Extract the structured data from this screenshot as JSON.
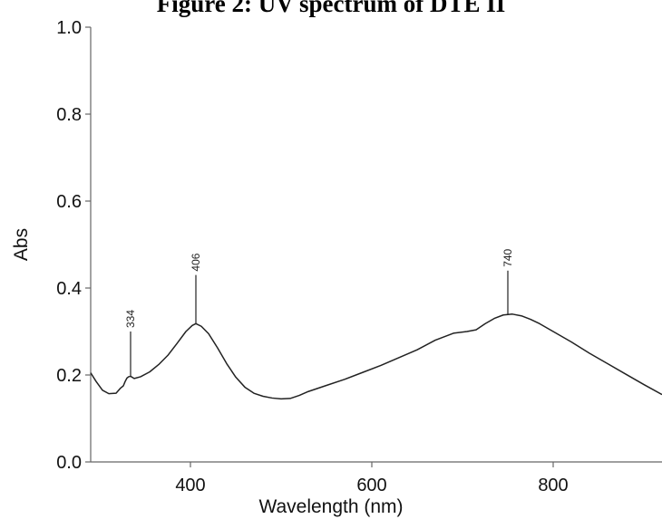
{
  "chart_data": {
    "type": "line",
    "title": "Figure 2: UV spectrum of DTE II",
    "xlabel": "Wavelength (nm)",
    "ylabel": "Abs",
    "xlim": [
      290,
      920
    ],
    "ylim": [
      0.0,
      1.0
    ],
    "x_ticks": [
      400,
      600,
      800
    ],
    "x_tick_labels": [
      "400",
      "600",
      "800"
    ],
    "y_ticks": [
      0.0,
      0.2,
      0.4,
      0.6,
      0.8,
      1.0
    ],
    "y_tick_labels": [
      "0.0",
      "0.2",
      "0.4",
      "0.6",
      "0.8",
      "1.0"
    ],
    "grid": false,
    "legend": "none",
    "series": [
      {
        "x": [
          290,
          296,
          303,
          310,
          318,
          323,
          326,
          328,
          330,
          332,
          334,
          338,
          345,
          355,
          365,
          375,
          385,
          395,
          402,
          406,
          412,
          420,
          430,
          440,
          450,
          460,
          470,
          480,
          490,
          500,
          510,
          520,
          530,
          550,
          570,
          590,
          610,
          630,
          650,
          670,
          690,
          705,
          715,
          725,
          735,
          745,
          755,
          765,
          775,
          785,
          800,
          820,
          840,
          860,
          880,
          900,
          920
        ],
        "y": [
          0.205,
          0.185,
          0.165,
          0.157,
          0.158,
          0.17,
          0.175,
          0.185,
          0.193,
          0.196,
          0.197,
          0.192,
          0.196,
          0.207,
          0.224,
          0.245,
          0.272,
          0.3,
          0.314,
          0.318,
          0.312,
          0.295,
          0.262,
          0.226,
          0.195,
          0.172,
          0.158,
          0.151,
          0.147,
          0.145,
          0.146,
          0.153,
          0.162,
          0.176,
          0.19,
          0.206,
          0.222,
          0.24,
          0.258,
          0.28,
          0.296,
          0.3,
          0.304,
          0.318,
          0.33,
          0.338,
          0.34,
          0.336,
          0.328,
          0.318,
          0.3,
          0.276,
          0.25,
          0.226,
          0.202,
          0.178,
          0.155
        ]
      }
    ],
    "annotations": [
      {
        "label": "334",
        "x": 334,
        "y": 0.197,
        "line_top": 0.3
      },
      {
        "label": "406",
        "x": 406,
        "y": 0.318,
        "line_top": 0.43
      },
      {
        "label": "740",
        "x": 750,
        "y": 0.34,
        "line_top": 0.44
      }
    ]
  }
}
